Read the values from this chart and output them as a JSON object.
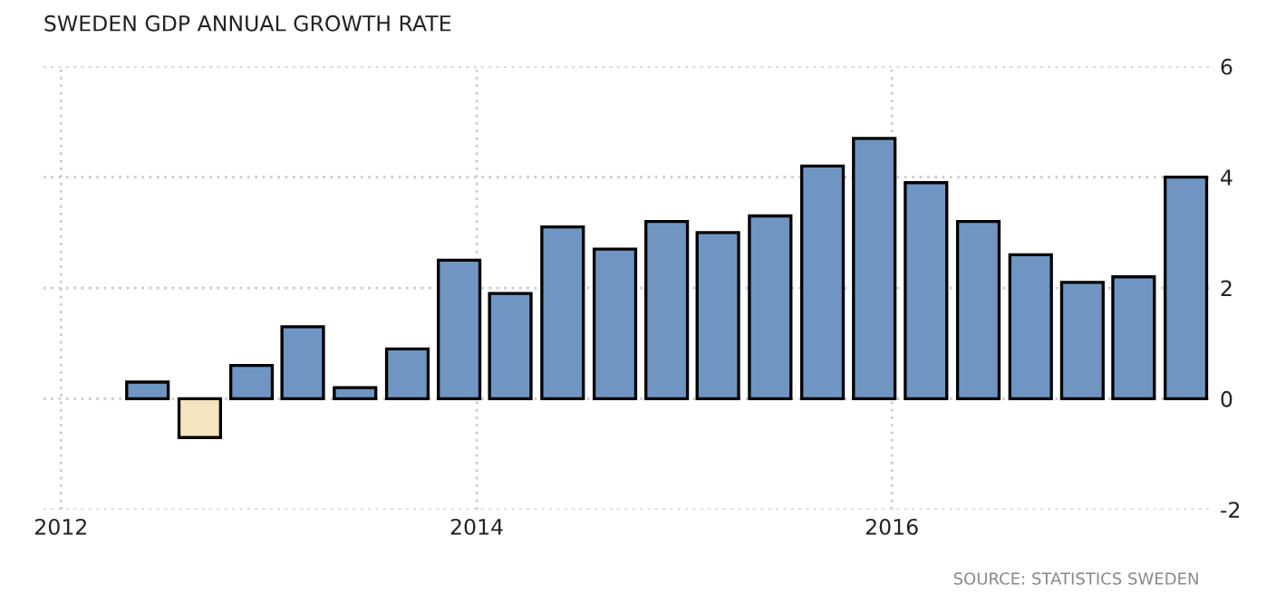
{
  "chart_data": {
    "type": "bar",
    "title": "SWEDEN GDP ANNUAL GROWTH RATE",
    "x": [
      "2012-06",
      "2012-09",
      "2012-12",
      "2013-03",
      "2013-06",
      "2013-09",
      "2013-12",
      "2014-03",
      "2014-06",
      "2014-09",
      "2014-12",
      "2015-03",
      "2015-06",
      "2015-09",
      "2015-12",
      "2016-03",
      "2016-06",
      "2016-09",
      "2016-12",
      "2017-03",
      "2017-06"
    ],
    "values": [
      0.3,
      -0.7,
      0.6,
      1.3,
      0.2,
      0.9,
      2.5,
      1.9,
      3.1,
      2.7,
      3.2,
      3.0,
      3.3,
      4.2,
      4.7,
      3.9,
      3.2,
      2.6,
      2.1,
      2.2,
      4.0
    ],
    "colors": [
      "#6f96c2",
      "#f5e4c0",
      "#6f96c2",
      "#6f96c2",
      "#6f96c2",
      "#6f96c2",
      "#6f96c2",
      "#6f96c2",
      "#6f96c2",
      "#6f96c2",
      "#6f96c2",
      "#6f96c2",
      "#6f96c2",
      "#6f96c2",
      "#6f96c2",
      "#6f96c2",
      "#6f96c2",
      "#6f96c2",
      "#6f96c2",
      "#6f96c2",
      "#6f96c2"
    ],
    "xlim": [
      "2011-12",
      "2017-07-15"
    ],
    "xticks": [
      "2012",
      "2014",
      "2016"
    ],
    "ylim": [
      -2,
      6
    ],
    "yticks": [
      -2,
      0,
      2,
      4,
      6
    ],
    "grid": true,
    "annotations": [
      "SOURCE: STATISTICS SWEDEN"
    ]
  }
}
